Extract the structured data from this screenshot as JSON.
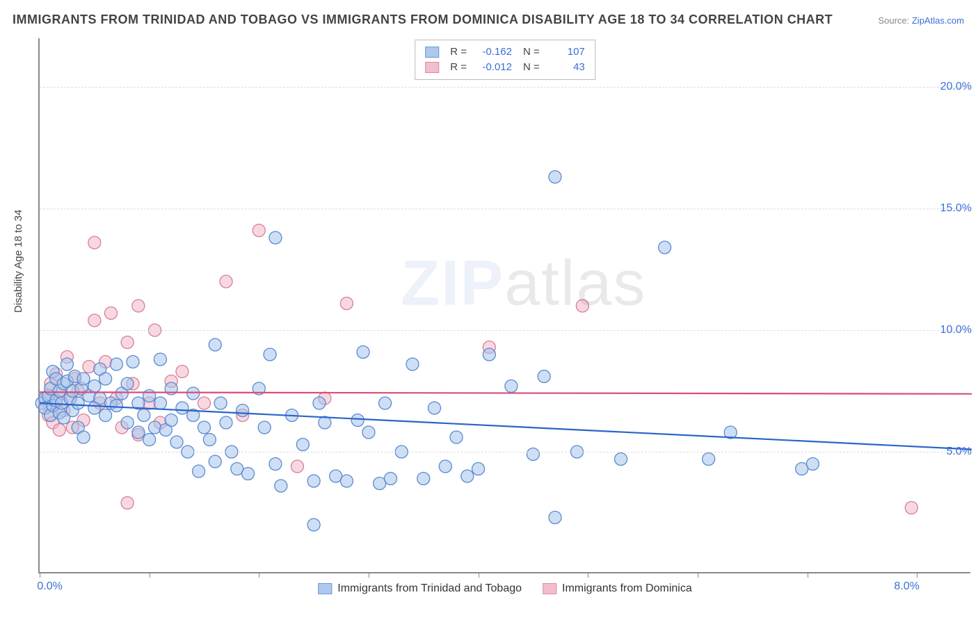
{
  "title": "IMMIGRANTS FROM TRINIDAD AND TOBAGO VS IMMIGRANTS FROM DOMINICA DISABILITY AGE 18 TO 34 CORRELATION CHART",
  "source_prefix": "Source: ",
  "source_name": "ZipAtlas.com",
  "y_axis_label": "Disability Age 18 to 34",
  "watermark_a": "ZIP",
  "watermark_b": "atlas",
  "chart": {
    "type": "scatter",
    "background_color": "#ffffff",
    "grid_color": "#dddddd",
    "axis_color": "#888888",
    "tick_label_color": "#3a6fd8",
    "xlim": [
      0.0,
      8.5
    ],
    "ylim": [
      0.0,
      22.0
    ],
    "x_ticks": [
      0,
      1,
      2,
      3,
      4,
      5,
      6,
      7,
      8
    ],
    "x_tick_labels": {
      "0": "0.0%",
      "8": "8.0%"
    },
    "y_gridlines": [
      5,
      10,
      15,
      20
    ],
    "y_tick_labels": {
      "5": "5.0%",
      "10": "10.0%",
      "15": "15.0%",
      "20": "20.0%"
    },
    "marker_radius": 9,
    "marker_stroke_width": 1.3,
    "trend_line_width": 2.2,
    "series": [
      {
        "key": "trinidad",
        "label": "Immigrants from Trinidad and Tobago",
        "fill": "#a6c4ec",
        "fill_opacity": 0.55,
        "stroke": "#5b8ad0",
        "trend_color": "#2a64c9",
        "r_value": "-0.162",
        "n_value": "107",
        "trend": {
          "x1": 0.0,
          "y1": 7.0,
          "x2": 8.5,
          "y2": 5.1
        },
        "points": [
          [
            0.02,
            7.0
          ],
          [
            0.05,
            7.2
          ],
          [
            0.05,
            6.8
          ],
          [
            0.08,
            7.3
          ],
          [
            0.1,
            7.6
          ],
          [
            0.1,
            6.5
          ],
          [
            0.12,
            8.3
          ],
          [
            0.12,
            6.9
          ],
          [
            0.15,
            7.1
          ],
          [
            0.15,
            8.0
          ],
          [
            0.18,
            7.5
          ],
          [
            0.18,
            6.6
          ],
          [
            0.2,
            7.0
          ],
          [
            0.22,
            7.8
          ],
          [
            0.22,
            6.4
          ],
          [
            0.25,
            7.9
          ],
          [
            0.25,
            8.6
          ],
          [
            0.28,
            7.2
          ],
          [
            0.3,
            6.7
          ],
          [
            0.3,
            7.5
          ],
          [
            0.32,
            8.1
          ],
          [
            0.35,
            7.0
          ],
          [
            0.35,
            6.0
          ],
          [
            0.38,
            7.6
          ],
          [
            0.4,
            8.0
          ],
          [
            0.4,
            5.6
          ],
          [
            0.45,
            7.3
          ],
          [
            0.5,
            6.8
          ],
          [
            0.5,
            7.7
          ],
          [
            0.55,
            7.2
          ],
          [
            0.55,
            8.4
          ],
          [
            0.6,
            6.5
          ],
          [
            0.6,
            8.0
          ],
          [
            0.65,
            7.0
          ],
          [
            0.7,
            6.9
          ],
          [
            0.7,
            8.6
          ],
          [
            0.75,
            7.4
          ],
          [
            0.8,
            6.2
          ],
          [
            0.8,
            7.8
          ],
          [
            0.85,
            8.7
          ],
          [
            0.9,
            7.0
          ],
          [
            0.9,
            5.8
          ],
          [
            0.95,
            6.5
          ],
          [
            1.0,
            7.3
          ],
          [
            1.0,
            5.5
          ],
          [
            1.05,
            6.0
          ],
          [
            1.1,
            7.0
          ],
          [
            1.1,
            8.8
          ],
          [
            1.15,
            5.9
          ],
          [
            1.2,
            6.3
          ],
          [
            1.2,
            7.6
          ],
          [
            1.25,
            5.4
          ],
          [
            1.3,
            6.8
          ],
          [
            1.35,
            5.0
          ],
          [
            1.4,
            6.5
          ],
          [
            1.4,
            7.4
          ],
          [
            1.45,
            4.2
          ],
          [
            1.5,
            6.0
          ],
          [
            1.55,
            5.5
          ],
          [
            1.6,
            9.4
          ],
          [
            1.6,
            4.6
          ],
          [
            1.65,
            7.0
          ],
          [
            1.7,
            6.2
          ],
          [
            1.75,
            5.0
          ],
          [
            1.8,
            4.3
          ],
          [
            1.85,
            6.7
          ],
          [
            1.9,
            4.1
          ],
          [
            2.0,
            7.6
          ],
          [
            2.05,
            6.0
          ],
          [
            2.1,
            9.0
          ],
          [
            2.15,
            4.5
          ],
          [
            2.15,
            13.8
          ],
          [
            2.2,
            3.6
          ],
          [
            2.3,
            6.5
          ],
          [
            2.4,
            5.3
          ],
          [
            2.5,
            3.8
          ],
          [
            2.5,
            2.0
          ],
          [
            2.55,
            7.0
          ],
          [
            2.6,
            6.2
          ],
          [
            2.7,
            4.0
          ],
          [
            2.8,
            3.8
          ],
          [
            2.9,
            6.3
          ],
          [
            2.95,
            9.1
          ],
          [
            3.0,
            5.8
          ],
          [
            3.1,
            3.7
          ],
          [
            3.15,
            7.0
          ],
          [
            3.2,
            3.9
          ],
          [
            3.3,
            5.0
          ],
          [
            3.4,
            8.6
          ],
          [
            3.5,
            3.9
          ],
          [
            3.6,
            6.8
          ],
          [
            3.7,
            4.4
          ],
          [
            3.8,
            5.6
          ],
          [
            3.9,
            4.0
          ],
          [
            4.0,
            4.3
          ],
          [
            4.1,
            9.0
          ],
          [
            4.3,
            7.7
          ],
          [
            4.5,
            4.9
          ],
          [
            4.6,
            8.1
          ],
          [
            4.7,
            2.3
          ],
          [
            4.7,
            16.3
          ],
          [
            4.9,
            5.0
          ],
          [
            5.3,
            4.7
          ],
          [
            5.7,
            13.4
          ],
          [
            6.1,
            4.7
          ],
          [
            6.3,
            5.8
          ],
          [
            6.95,
            4.3
          ],
          [
            7.05,
            4.5
          ]
        ]
      },
      {
        "key": "dominica",
        "label": "Immigrants from Dominica",
        "fill": "#f2b8c6",
        "fill_opacity": 0.55,
        "stroke": "#d77f97",
        "trend_color": "#d94d78",
        "r_value": "-0.012",
        "n_value": "43",
        "trend": {
          "x1": 0.0,
          "y1": 7.45,
          "x2": 8.5,
          "y2": 7.38
        },
        "points": [
          [
            0.05,
            7.1
          ],
          [
            0.08,
            6.5
          ],
          [
            0.1,
            7.8
          ],
          [
            0.12,
            6.2
          ],
          [
            0.15,
            7.0
          ],
          [
            0.15,
            8.2
          ],
          [
            0.18,
            5.9
          ],
          [
            0.2,
            7.4
          ],
          [
            0.22,
            6.7
          ],
          [
            0.25,
            8.9
          ],
          [
            0.28,
            7.2
          ],
          [
            0.3,
            6.0
          ],
          [
            0.32,
            8.0
          ],
          [
            0.35,
            7.5
          ],
          [
            0.4,
            6.3
          ],
          [
            0.45,
            8.5
          ],
          [
            0.5,
            10.4
          ],
          [
            0.5,
            13.6
          ],
          [
            0.55,
            7.0
          ],
          [
            0.6,
            8.7
          ],
          [
            0.65,
            10.7
          ],
          [
            0.7,
            7.2
          ],
          [
            0.75,
            6.0
          ],
          [
            0.8,
            9.5
          ],
          [
            0.8,
            2.9
          ],
          [
            0.85,
            7.8
          ],
          [
            0.9,
            5.7
          ],
          [
            0.9,
            11.0
          ],
          [
            1.0,
            7.0
          ],
          [
            1.05,
            10.0
          ],
          [
            1.1,
            6.2
          ],
          [
            1.2,
            7.9
          ],
          [
            1.3,
            8.3
          ],
          [
            1.5,
            7.0
          ],
          [
            1.7,
            12.0
          ],
          [
            1.85,
            6.5
          ],
          [
            2.0,
            14.1
          ],
          [
            2.35,
            4.4
          ],
          [
            2.6,
            7.2
          ],
          [
            2.8,
            11.1
          ],
          [
            4.1,
            9.3
          ],
          [
            4.95,
            11.0
          ],
          [
            7.95,
            2.7
          ]
        ]
      }
    ]
  },
  "legend_top_labels": {
    "r": "R =",
    "n": "N ="
  }
}
